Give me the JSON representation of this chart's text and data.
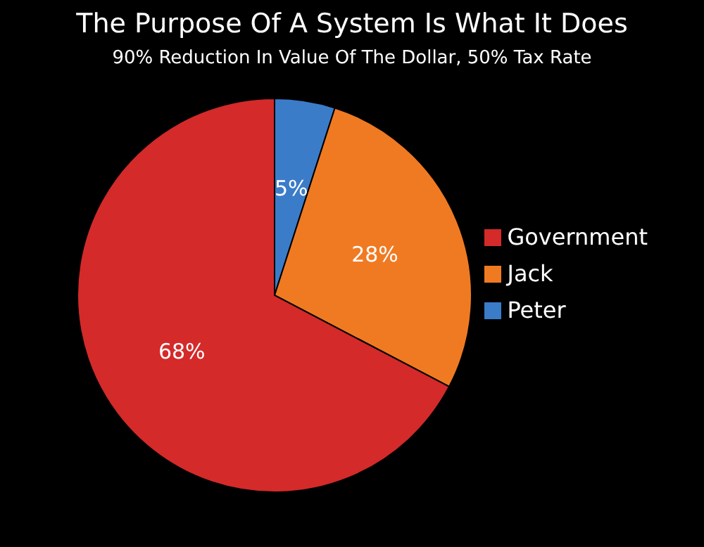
{
  "chart_data": {
    "type": "pie",
    "title": "The Purpose Of A System Is What It Does",
    "subtitle": "90% Reduction In Value Of The Dollar, 50% Tax Rate",
    "categories": [
      "Peter",
      "Jack",
      "Government"
    ],
    "values": [
      5,
      28,
      68
    ],
    "value_labels": [
      "5%",
      "28%",
      "68%"
    ],
    "colors": [
      "#3b7cc9",
      "#f07a22",
      "#d42a2a"
    ],
    "legend": "right"
  }
}
